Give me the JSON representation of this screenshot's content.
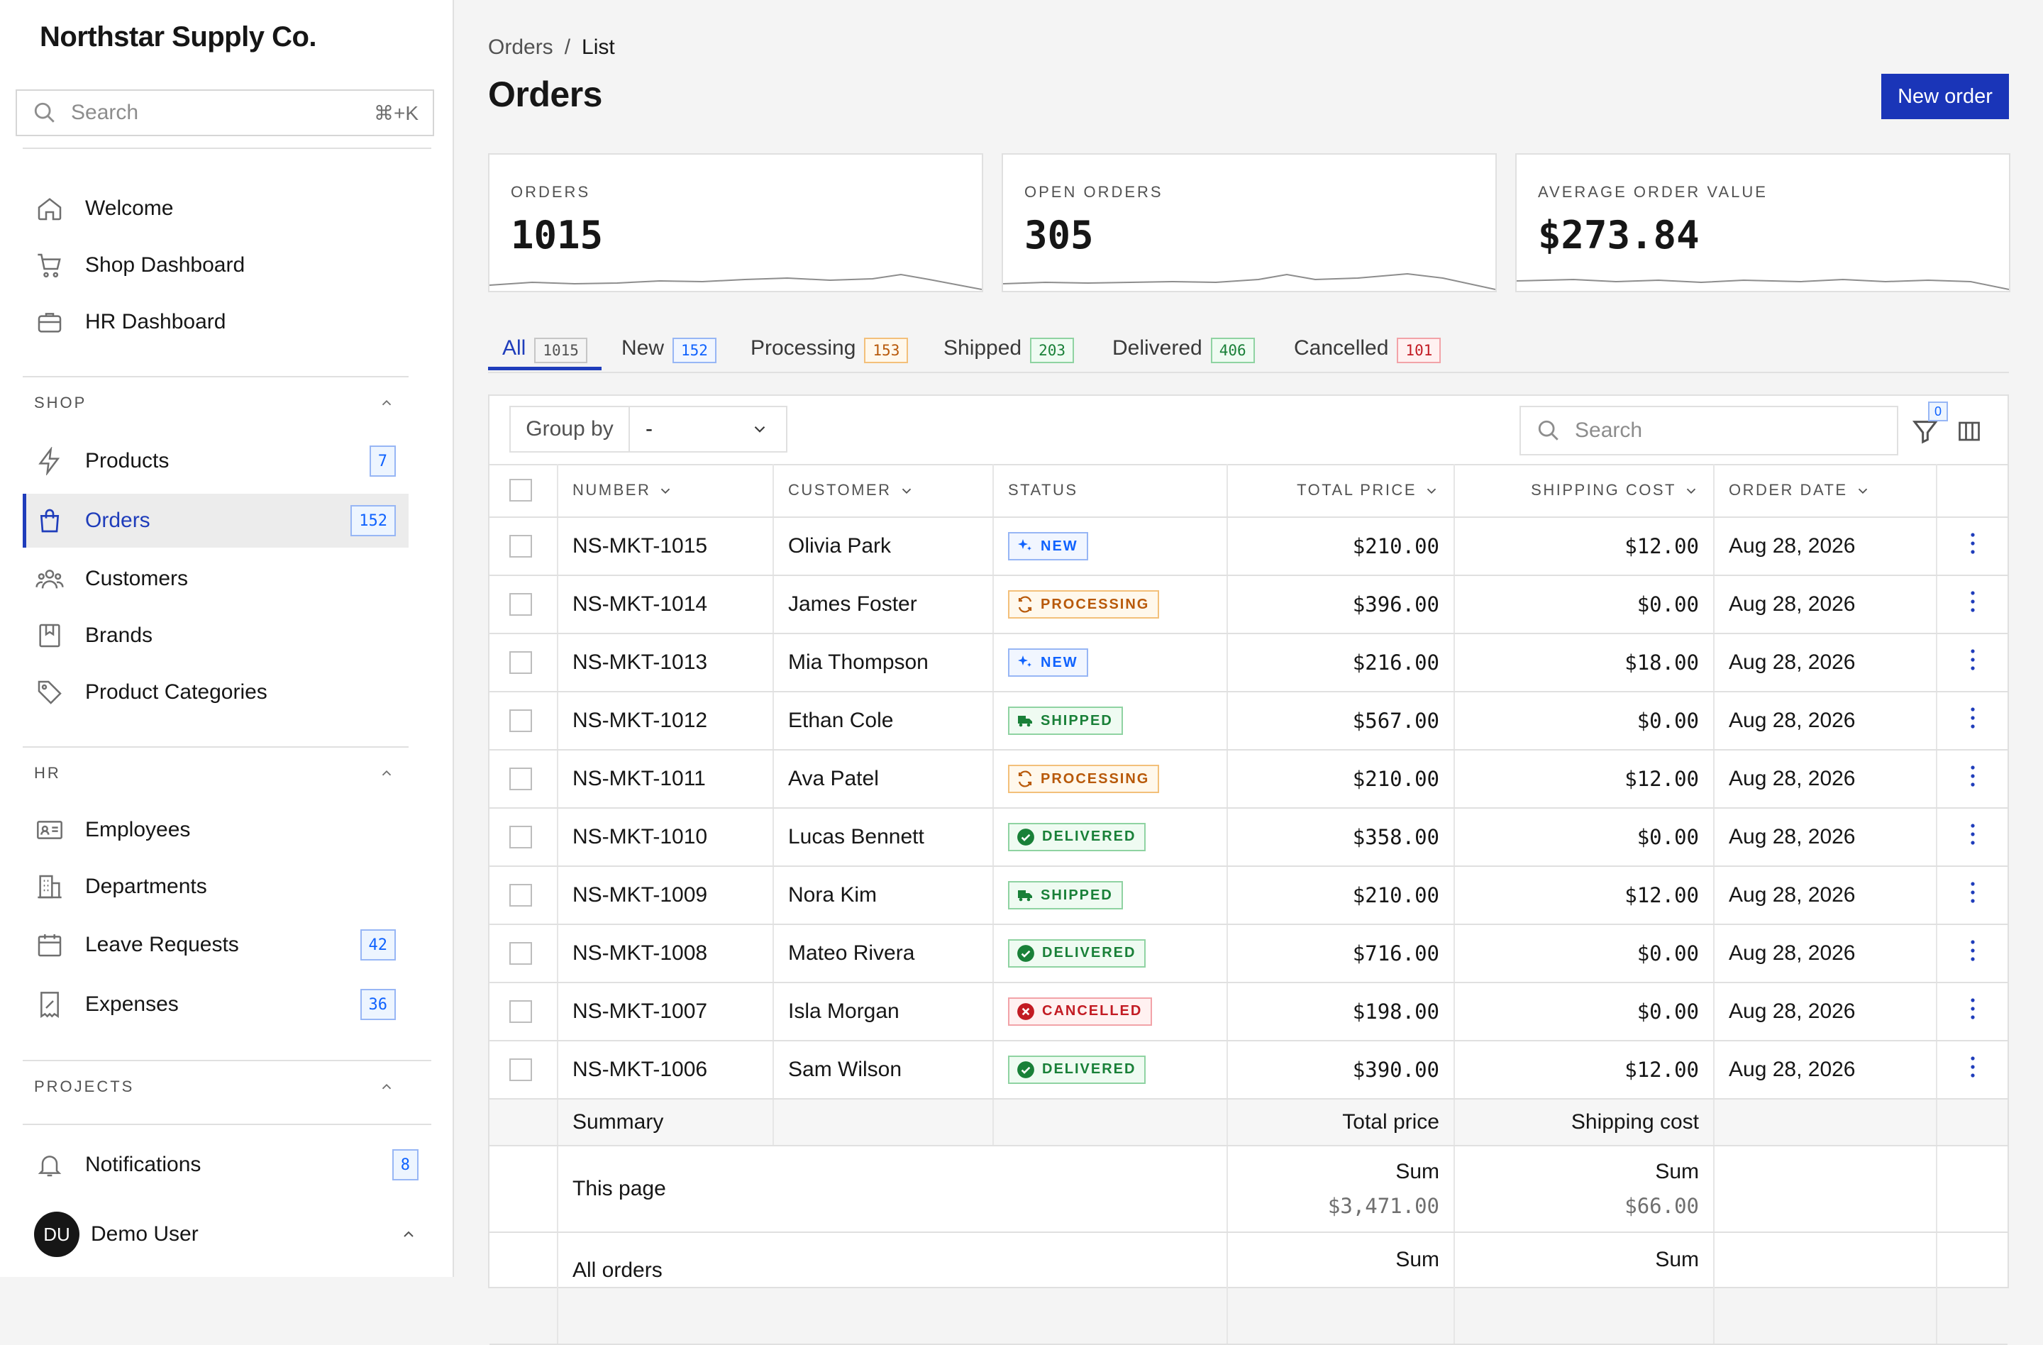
{
  "app": {
    "name": "Northstar Supply Co."
  },
  "sidebar": {
    "search_placeholder": "Search",
    "search_shortcut": "⌘+K",
    "top_items": [
      {
        "label": "Welcome",
        "icon": "home-icon"
      },
      {
        "label": "Shop Dashboard",
        "icon": "cart-icon"
      },
      {
        "label": "HR Dashboard",
        "icon": "briefcase-icon"
      }
    ],
    "shop": {
      "title": "SHOP",
      "items": [
        {
          "label": "Products",
          "icon": "bolt-icon",
          "badge": "7"
        },
        {
          "label": "Orders",
          "icon": "shopping-bag-icon",
          "badge": "152",
          "active": true
        },
        {
          "label": "Customers",
          "icon": "users-icon"
        },
        {
          "label": "Brands",
          "icon": "bookmark-icon"
        },
        {
          "label": "Product Categories",
          "icon": "tag-icon"
        }
      ]
    },
    "hr": {
      "title": "HR",
      "items": [
        {
          "label": "Employees",
          "icon": "id-card-icon"
        },
        {
          "label": "Departments",
          "icon": "building-icon"
        },
        {
          "label": "Leave Requests",
          "icon": "calendar-icon",
          "badge": "42"
        },
        {
          "label": "Expenses",
          "icon": "receipt-icon",
          "badge": "36"
        }
      ]
    },
    "projects": {
      "title": "PROJECTS"
    },
    "notifications": {
      "label": "Notifications",
      "icon": "bell-icon",
      "badge": "8"
    },
    "user": {
      "initials": "DU",
      "name": "Demo User"
    }
  },
  "header": {
    "breadcrumb": [
      "Orders",
      "List"
    ],
    "breadcrumb_sep": "/",
    "title": "Orders",
    "new_button": "New order"
  },
  "stats": [
    {
      "label": "ORDERS",
      "value": "1015"
    },
    {
      "label": "OPEN ORDERS",
      "value": "305"
    },
    {
      "label": "AVERAGE ORDER VALUE",
      "value": "$273.84"
    }
  ],
  "tabs": [
    {
      "label": "All",
      "count": "1015",
      "active": true
    },
    {
      "label": "New",
      "count": "152"
    },
    {
      "label": "Processing",
      "count": "153"
    },
    {
      "label": "Shipped",
      "count": "203"
    },
    {
      "label": "Delivered",
      "count": "406"
    },
    {
      "label": "Cancelled",
      "count": "101"
    }
  ],
  "toolbar": {
    "group_by_label": "Group by",
    "group_by_value": "-",
    "search_placeholder": "Search",
    "filter_count": "0"
  },
  "table": {
    "headers": {
      "number": "NUMBER",
      "customer": "CUSTOMER",
      "status": "STATUS",
      "total_price": "TOTAL PRICE",
      "shipping_cost": "SHIPPING COST",
      "order_date": "ORDER DATE"
    },
    "rows": [
      {
        "number": "NS-MKT-1015",
        "customer": "Olivia Park",
        "status": "NEW",
        "total": "$210.00",
        "shipping": "$12.00",
        "date": "Aug 28, 2026"
      },
      {
        "number": "NS-MKT-1014",
        "customer": "James Foster",
        "status": "PROCESSING",
        "total": "$396.00",
        "shipping": "$0.00",
        "date": "Aug 28, 2026"
      },
      {
        "number": "NS-MKT-1013",
        "customer": "Mia Thompson",
        "status": "NEW",
        "total": "$216.00",
        "shipping": "$18.00",
        "date": "Aug 28, 2026"
      },
      {
        "number": "NS-MKT-1012",
        "customer": "Ethan Cole",
        "status": "SHIPPED",
        "total": "$567.00",
        "shipping": "$0.00",
        "date": "Aug 28, 2026"
      },
      {
        "number": "NS-MKT-1011",
        "customer": "Ava Patel",
        "status": "PROCESSING",
        "total": "$210.00",
        "shipping": "$12.00",
        "date": "Aug 28, 2026"
      },
      {
        "number": "NS-MKT-1010",
        "customer": "Lucas Bennett",
        "status": "DELIVERED",
        "total": "$358.00",
        "shipping": "$0.00",
        "date": "Aug 28, 2026"
      },
      {
        "number": "NS-MKT-1009",
        "customer": "Nora Kim",
        "status": "SHIPPED",
        "total": "$210.00",
        "shipping": "$12.00",
        "date": "Aug 28, 2026"
      },
      {
        "number": "NS-MKT-1008",
        "customer": "Mateo Rivera",
        "status": "DELIVERED",
        "total": "$716.00",
        "shipping": "$0.00",
        "date": "Aug 28, 2026"
      },
      {
        "number": "NS-MKT-1007",
        "customer": "Isla Morgan",
        "status": "CANCELLED",
        "total": "$198.00",
        "shipping": "$0.00",
        "date": "Aug 28, 2026"
      },
      {
        "number": "NS-MKT-1006",
        "customer": "Sam Wilson",
        "status": "DELIVERED",
        "total": "$390.00",
        "shipping": "$12.00",
        "date": "Aug 28, 2026"
      }
    ],
    "summary": {
      "label": "Summary",
      "total_price_label": "Total price",
      "shipping_cost_label": "Shipping cost",
      "this_page_label": "This page",
      "sum_label": "Sum",
      "this_page_total": "$3,471.00",
      "this_page_shipping": "$66.00",
      "all_orders_label": "All orders"
    }
  },
  "colors": {
    "accent": "#1f3dbb",
    "button": "#1a35b8",
    "new": "#0f62fe",
    "processing": "#b8590a",
    "shipped": "#198038",
    "delivered": "#198038",
    "cancelled": "#c21b23"
  }
}
